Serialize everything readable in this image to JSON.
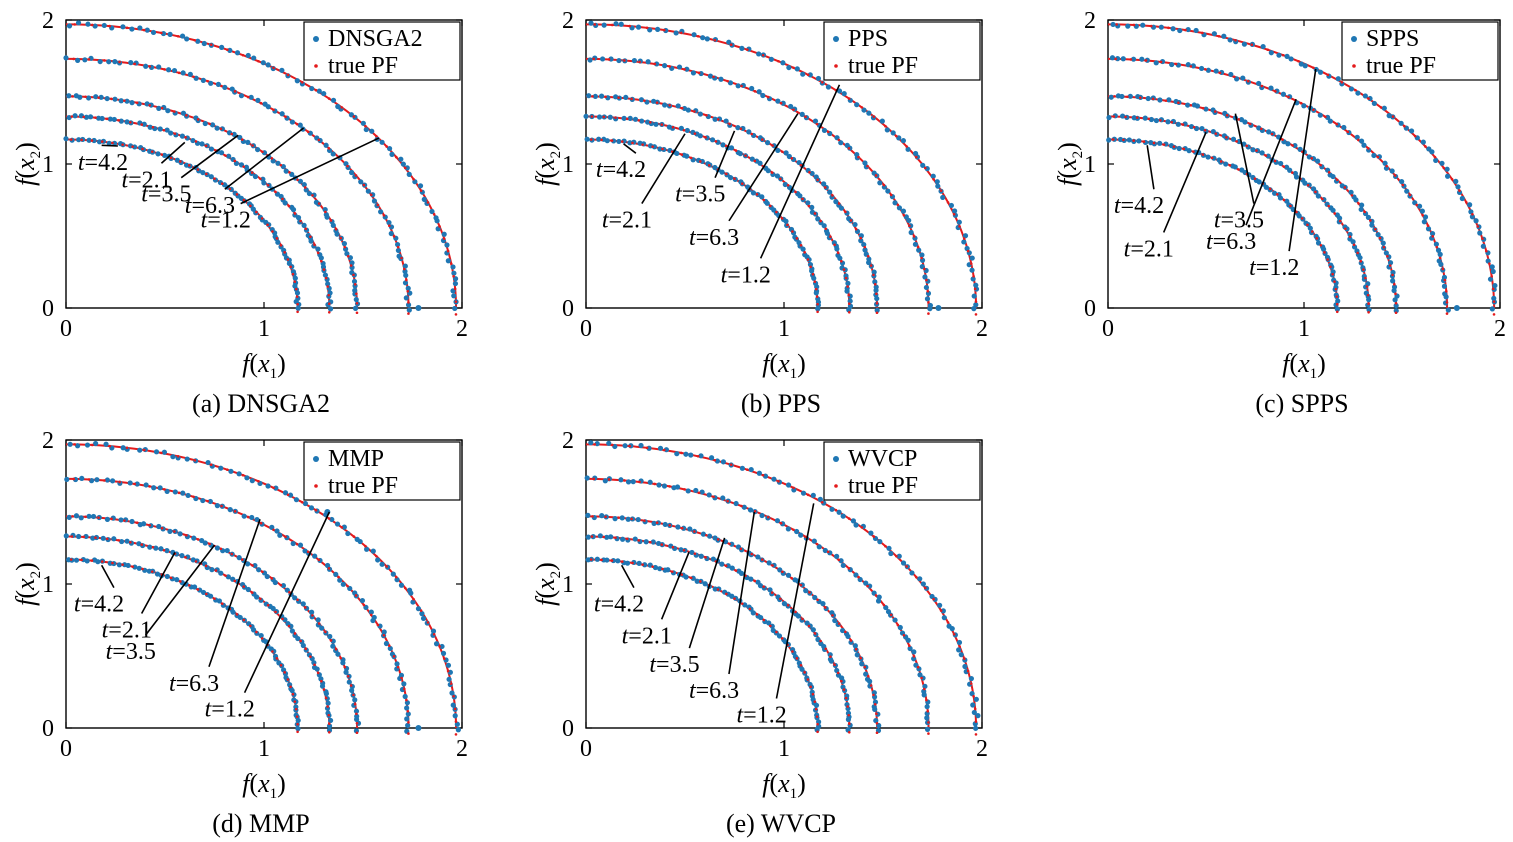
{
  "colors": {
    "algorithm": "#1f77b4",
    "true_pf": "#e41a1c",
    "axis": "#000000",
    "background": "#ffffff"
  },
  "axis_text": {
    "x_func": "f",
    "x_var": "x",
    "x_sub": "1",
    "y_func": "f",
    "y_var": "x",
    "y_sub": "2"
  },
  "chart_data": [
    {
      "type": "scatter",
      "caption": "(a) DNSGA2",
      "xlim": [
        0,
        2
      ],
      "ylim": [
        0,
        2
      ],
      "xticks": [
        "0",
        "1",
        "2"
      ],
      "yticks": [
        "0",
        "1",
        "2"
      ],
      "legend": {
        "position": "top-right",
        "entries": [
          "DNSGA2",
          "true PF"
        ]
      },
      "fronts": [
        {
          "t": "4.2",
          "radius": 1.17
        },
        {
          "t": "2.1",
          "radius": 1.33
        },
        {
          "t": "3.5",
          "radius": 1.47
        },
        {
          "t": "6.3",
          "radius": 1.73
        },
        {
          "t": "1.2",
          "radius": 1.97
        }
      ],
      "annotations": [
        {
          "text": "4.2",
          "label_at": [
            0.06,
            1.0
          ],
          "points_to": [
            0.18,
            1.13
          ]
        },
        {
          "text": "2.1",
          "label_at": [
            0.28,
            0.88
          ],
          "points_to": [
            0.6,
            1.15
          ]
        },
        {
          "text": "3.5",
          "label_at": [
            0.38,
            0.78
          ],
          "points_to": [
            0.87,
            1.2
          ]
        },
        {
          "text": "6.3",
          "label_at": [
            0.6,
            0.7
          ],
          "points_to": [
            1.2,
            1.25
          ]
        },
        {
          "text": "1.2",
          "label_at": [
            0.68,
            0.6
          ],
          "points_to": [
            1.58,
            1.18
          ]
        }
      ],
      "extra_points": [
        [
          1.78,
          0.0
        ]
      ]
    },
    {
      "type": "scatter",
      "caption": "(b) PPS",
      "xlim": [
        0,
        2
      ],
      "ylim": [
        0,
        2
      ],
      "xticks": [
        "0",
        "1",
        "2"
      ],
      "yticks": [
        "0",
        "1",
        "2"
      ],
      "legend": {
        "position": "top-right",
        "entries": [
          "PPS",
          "true PF"
        ]
      },
      "fronts": [
        {
          "t": "4.2",
          "radius": 1.17
        },
        {
          "t": "2.1",
          "radius": 1.33
        },
        {
          "t": "3.5",
          "radius": 1.47
        },
        {
          "t": "6.3",
          "radius": 1.73
        },
        {
          "t": "1.2",
          "radius": 1.97
        }
      ],
      "annotations": [
        {
          "text": "4.2",
          "label_at": [
            0.05,
            0.95
          ],
          "points_to": [
            0.19,
            1.14
          ]
        },
        {
          "text": "2.1",
          "label_at": [
            0.08,
            0.6
          ],
          "points_to": [
            0.5,
            1.21
          ]
        },
        {
          "text": "3.5",
          "label_at": [
            0.45,
            0.78
          ],
          "points_to": [
            0.75,
            1.23
          ]
        },
        {
          "text": "6.3",
          "label_at": [
            0.52,
            0.48
          ],
          "points_to": [
            1.07,
            1.35
          ]
        },
        {
          "text": "1.2",
          "label_at": [
            0.68,
            0.22
          ],
          "points_to": [
            1.28,
            1.55
          ]
        }
      ],
      "extra_points": [
        [
          1.78,
          0.0
        ]
      ]
    },
    {
      "type": "scatter",
      "caption": "(c) SPPS",
      "xlim": [
        0,
        2
      ],
      "ylim": [
        0,
        2
      ],
      "xticks": [
        "0",
        "1",
        "2"
      ],
      "yticks": [
        "0",
        "1",
        "2"
      ],
      "legend": {
        "position": "top-right",
        "entries": [
          "SPPS",
          "true PF"
        ]
      },
      "fronts": [
        {
          "t": "4.2",
          "radius": 1.17
        },
        {
          "t": "2.1",
          "radius": 1.33
        },
        {
          "t": "3.5",
          "radius": 1.47
        },
        {
          "t": "6.3",
          "radius": 1.73
        },
        {
          "t": "1.2",
          "radius": 1.97
        }
      ],
      "annotations": [
        {
          "text": "4.2",
          "label_at": [
            0.03,
            0.7
          ],
          "points_to": [
            0.2,
            1.13
          ]
        },
        {
          "text": "2.1",
          "label_at": [
            0.08,
            0.4
          ],
          "points_to": [
            0.5,
            1.22
          ]
        },
        {
          "text": "3.5",
          "label_at": [
            0.54,
            0.6
          ],
          "points_to": [
            0.65,
            1.35
          ]
        },
        {
          "text": "6.3",
          "label_at": [
            0.5,
            0.45
          ],
          "points_to": [
            0.96,
            1.45
          ]
        },
        {
          "text": "1.2",
          "label_at": [
            0.72,
            0.27
          ],
          "points_to": [
            1.06,
            1.66
          ]
        }
      ],
      "extra_points": [
        [
          1.78,
          0.0
        ]
      ]
    },
    {
      "type": "scatter",
      "caption": "(d) MMP",
      "xlim": [
        0,
        2
      ],
      "ylim": [
        0,
        2
      ],
      "xticks": [
        "0",
        "1",
        "2"
      ],
      "yticks": [
        "0",
        "1",
        "2"
      ],
      "legend": {
        "position": "top-right",
        "entries": [
          "MMP",
          "true PF"
        ]
      },
      "fronts": [
        {
          "t": "4.2",
          "radius": 1.17
        },
        {
          "t": "2.1",
          "radius": 1.33
        },
        {
          "t": "3.5",
          "radius": 1.47
        },
        {
          "t": "6.3",
          "radius": 1.73
        },
        {
          "t": "1.2",
          "radius": 1.97
        }
      ],
      "annotations": [
        {
          "text": "4.2",
          "label_at": [
            0.04,
            0.85
          ],
          "points_to": [
            0.18,
            1.13
          ]
        },
        {
          "text": "2.1",
          "label_at": [
            0.18,
            0.67
          ],
          "points_to": [
            0.55,
            1.22
          ]
        },
        {
          "text": "3.5",
          "label_at": [
            0.2,
            0.52
          ],
          "points_to": [
            0.75,
            1.27
          ]
        },
        {
          "text": "6.3",
          "label_at": [
            0.52,
            0.3
          ],
          "points_to": [
            0.98,
            1.45
          ]
        },
        {
          "text": "1.2",
          "label_at": [
            0.7,
            0.12
          ],
          "points_to": [
            1.33,
            1.5
          ]
        }
      ],
      "extra_points": [
        [
          1.78,
          0.0
        ],
        [
          1.32,
          1.5
        ]
      ]
    },
    {
      "type": "scatter",
      "caption": "(e) WVCP",
      "xlim": [
        0,
        2
      ],
      "ylim": [
        0,
        2
      ],
      "xticks": [
        "0",
        "1",
        "2"
      ],
      "yticks": [
        "0",
        "1",
        "2"
      ],
      "legend": {
        "position": "top-right",
        "entries": [
          "WVCP",
          "true PF"
        ]
      },
      "fronts": [
        {
          "t": "4.2",
          "radius": 1.17
        },
        {
          "t": "2.1",
          "radius": 1.33
        },
        {
          "t": "3.5",
          "radius": 1.47
        },
        {
          "t": "6.3",
          "radius": 1.73
        },
        {
          "t": "1.2",
          "radius": 1.97
        }
      ],
      "annotations": [
        {
          "text": "4.2",
          "label_at": [
            0.04,
            0.85
          ],
          "points_to": [
            0.18,
            1.13
          ]
        },
        {
          "text": "2.1",
          "label_at": [
            0.18,
            0.63
          ],
          "points_to": [
            0.52,
            1.22
          ]
        },
        {
          "text": "3.5",
          "label_at": [
            0.32,
            0.43
          ],
          "points_to": [
            0.7,
            1.32
          ]
        },
        {
          "text": "6.3",
          "label_at": [
            0.52,
            0.25
          ],
          "points_to": [
            0.85,
            1.5
          ]
        },
        {
          "text": "1.2",
          "label_at": [
            0.76,
            0.08
          ],
          "points_to": [
            1.15,
            1.56
          ]
        }
      ],
      "extra_points": []
    }
  ]
}
